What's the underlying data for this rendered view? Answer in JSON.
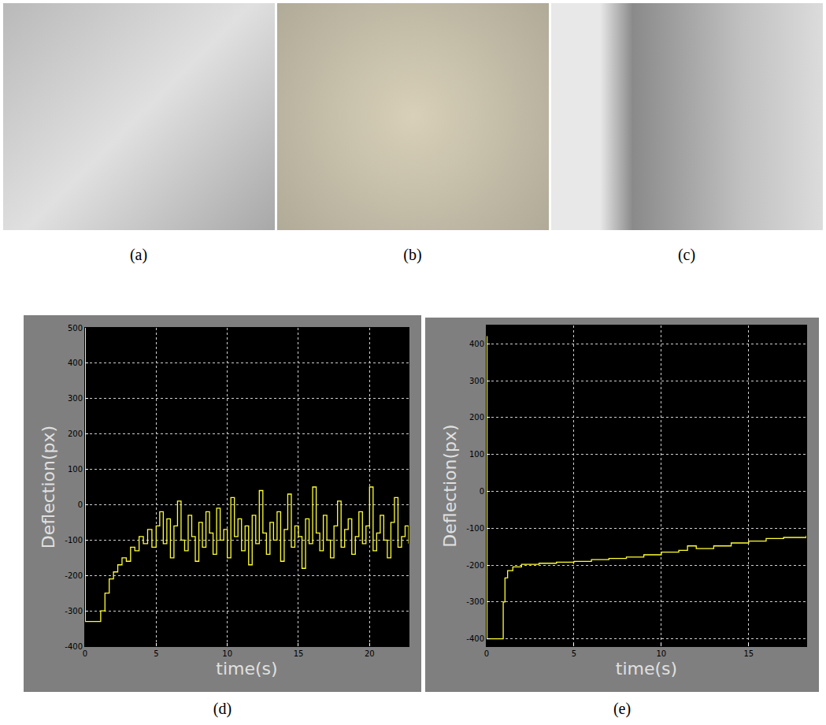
{
  "photos": [
    {
      "label": "(a)"
    },
    {
      "label": "(b)"
    },
    {
      "label": "(c)"
    }
  ],
  "chart_data": [
    {
      "type": "line",
      "label": "(d)",
      "x_label": "time(s)",
      "y_label": "Deflection(px)",
      "color": "#ffff33",
      "line_style": "step",
      "grid": true,
      "xlim": [
        0,
        22.75
      ],
      "xticks": [
        0,
        5,
        10,
        15,
        20
      ],
      "ylim": [
        -400,
        500
      ],
      "yticks": [
        -400,
        -300,
        -200,
        -100,
        0,
        100,
        200,
        300,
        400,
        500
      ],
      "x": [
        0,
        0.02,
        0.5,
        0.9,
        1.1,
        1.4,
        1.7,
        2.0,
        2.3,
        2.6,
        2.9,
        3.2,
        3.5,
        3.8,
        4.1,
        4.4,
        4.7,
        5.0,
        5.25,
        5.5,
        5.75,
        6.0,
        6.25,
        6.5,
        6.75,
        7.0,
        7.25,
        7.5,
        7.75,
        8.0,
        8.25,
        8.5,
        8.75,
        9.0,
        9.25,
        9.5,
        9.75,
        10.0,
        10.25,
        10.5,
        10.75,
        11.0,
        11.25,
        11.5,
        11.75,
        12.0,
        12.25,
        12.5,
        12.75,
        13.0,
        13.25,
        13.5,
        13.75,
        14.0,
        14.25,
        14.5,
        14.75,
        15.0,
        15.25,
        15.5,
        15.75,
        16.0,
        16.25,
        16.5,
        16.75,
        17.0,
        17.25,
        17.5,
        17.75,
        18.0,
        18.25,
        18.5,
        18.75,
        19.0,
        19.25,
        19.5,
        19.75,
        20.0,
        20.25,
        20.5,
        20.75,
        21.0,
        21.25,
        21.5,
        21.75,
        22.0,
        22.25,
        22.5,
        22.75
      ],
      "values": [
        500,
        -330,
        -330,
        -330,
        -300,
        -250,
        -210,
        -190,
        -170,
        -150,
        -160,
        -120,
        -130,
        -90,
        -110,
        -70,
        -120,
        -60,
        -20,
        -110,
        -40,
        -150,
        -60,
        10,
        -100,
        -130,
        -30,
        -90,
        -160,
        -50,
        -120,
        -20,
        -80,
        -140,
        -10,
        -100,
        -70,
        -150,
        20,
        -90,
        -40,
        -130,
        -60,
        -170,
        -30,
        -110,
        40,
        -80,
        -140,
        -50,
        -100,
        -20,
        -160,
        -70,
        30,
        -120,
        -60,
        -90,
        -180,
        -40,
        -110,
        50,
        -80,
        -130,
        -30,
        -100,
        -150,
        -60,
        10,
        -120,
        -70,
        -40,
        -140,
        -90,
        -20,
        -110,
        -60,
        50,
        -130,
        -80,
        -30,
        -100,
        -150,
        -50,
        20,
        -120,
        -90,
        -60,
        -110
      ]
    },
    {
      "type": "line",
      "label": "(e)",
      "x_label": "time(s)",
      "y_label": "Deflection(px)",
      "color": "#ffff33",
      "line_style": "step",
      "grid": true,
      "xlim": [
        0,
        18.3
      ],
      "xticks": [
        0,
        5,
        10,
        15
      ],
      "ylim": [
        -420,
        450
      ],
      "yticks": [
        -400,
        -300,
        -200,
        -100,
        0,
        100,
        200,
        300,
        400
      ],
      "x": [
        0,
        0.02,
        0.5,
        0.85,
        0.95,
        1.05,
        1.2,
        1.5,
        2.0,
        3.0,
        4.0,
        5.0,
        6.0,
        7.0,
        8.0,
        9.0,
        10.0,
        11.0,
        11.5,
        12.0,
        13.0,
        14.0,
        15.0,
        16.0,
        17.0,
        18.3
      ],
      "values": [
        420,
        -400,
        -400,
        -400,
        -300,
        -235,
        -215,
        -205,
        -198,
        -195,
        -192,
        -190,
        -185,
        -182,
        -178,
        -172,
        -165,
        -160,
        -148,
        -155,
        -148,
        -140,
        -135,
        -128,
        -125,
        -120
      ]
    }
  ]
}
